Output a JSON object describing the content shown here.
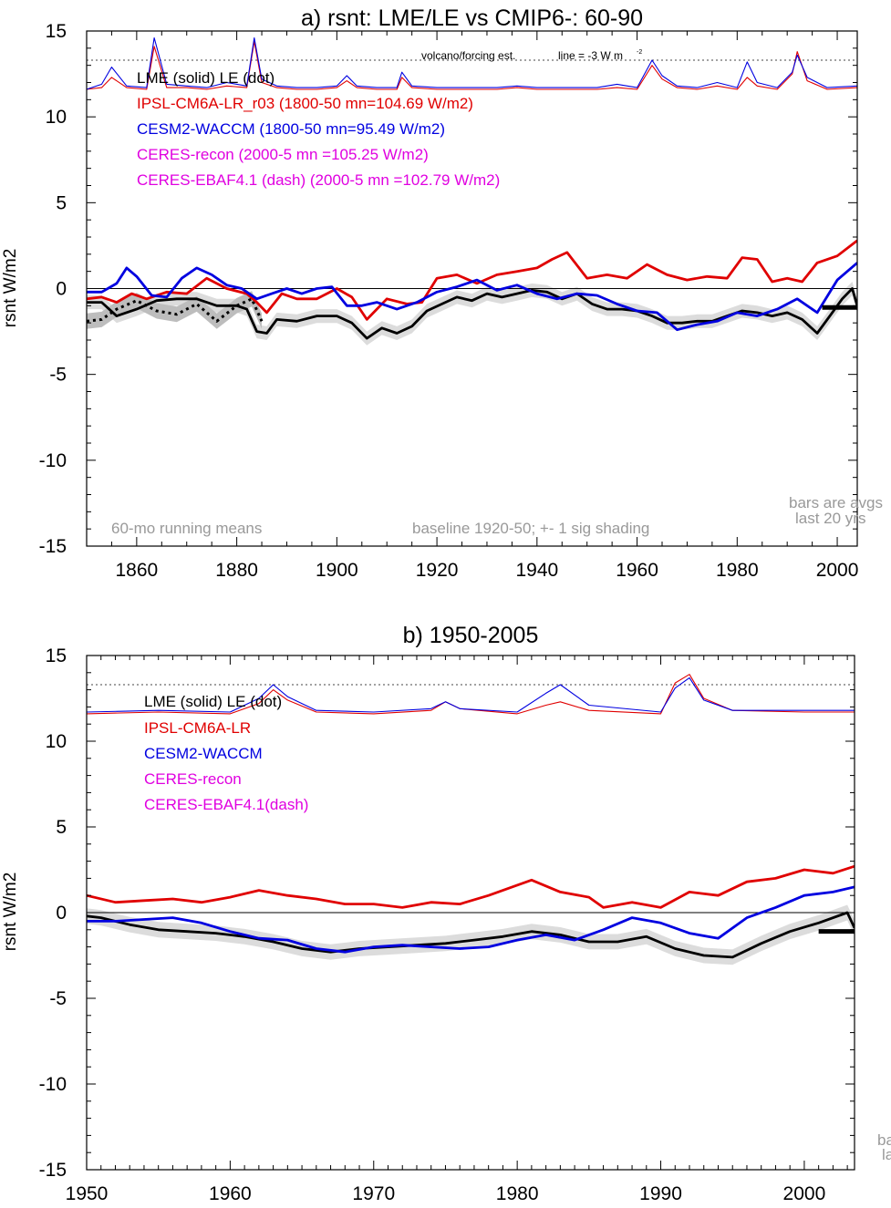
{
  "chart_data": [
    {
      "type": "line",
      "title": "a) rsnt: LME/LE vs CMIP6-: 60-90",
      "ylabel": "rsnt W/m2",
      "xlim": [
        1850,
        2004
      ],
      "ylim": [
        -15,
        15
      ],
      "xticks": [
        1860,
        1880,
        1900,
        1920,
        1940,
        1960,
        1980,
        2000
      ],
      "yticks": [
        15,
        10,
        5,
        0,
        -5,
        -10,
        -15
      ],
      "legend": [
        {
          "text": "LME (solid)    LE (dot)",
          "color": "#000000"
        },
        {
          "text": "IPSL-CM6A-LR_r03 (1800-50 mn=104.69 W/m2)",
          "color": "#e00000"
        },
        {
          "text": "CESM2-WACCM (1800-50 mn=95.49 W/m2)",
          "color": "#0000e0"
        },
        {
          "text": "CERES-recon (2000-5 mn =105.25 W/m2)",
          "color": "#e000e0"
        },
        {
          "text": "CERES-EBAF4.1 (dash) (2000-5 mn =102.79 W/m2)",
          "color": "#e000e0"
        }
      ],
      "annotations": {
        "volcano": "volcano/forcing est.",
        "line_note": "line = -3 W m",
        "line_note_sup": "-2",
        "running": "60-mo running means",
        "baseline": "baseline 1920-50; +- 1 sig shading",
        "bars1": "bars are avgs",
        "bars2": "last 20 yrs"
      },
      "ref_dotted_y": 13.3,
      "bar": {
        "x": [
          1997,
          2004
        ],
        "y": -1.1
      },
      "series": [
        {
          "name": "LME",
          "style": "solid-thick",
          "color": "#000000",
          "x": [
            1850,
            1853,
            1856,
            1860,
            1864,
            1868,
            1872,
            1876,
            1880,
            1882,
            1884,
            1886,
            1888,
            1892,
            1896,
            1900,
            1903,
            1906,
            1909,
            1912,
            1915,
            1918,
            1921,
            1924,
            1927,
            1930,
            1933,
            1936,
            1939,
            1942,
            1945,
            1948,
            1951,
            1954,
            1957,
            1960,
            1963,
            1966,
            1969,
            1972,
            1975,
            1978,
            1981,
            1984,
            1987,
            1990,
            1993,
            1996,
            1999,
            2001,
            2003,
            2004
          ],
          "y": [
            -0.8,
            -0.8,
            -1.6,
            -1.2,
            -0.7,
            -0.6,
            -0.6,
            -1.0,
            -1.0,
            -1.2,
            -2.5,
            -2.6,
            -1.8,
            -1.9,
            -1.6,
            -1.6,
            -2.0,
            -2.9,
            -2.3,
            -2.6,
            -2.2,
            -1.3,
            -0.9,
            -0.5,
            -0.7,
            -0.3,
            -0.5,
            -0.3,
            -0.1,
            -0.2,
            -0.6,
            -0.3,
            -0.9,
            -1.2,
            -1.2,
            -1.3,
            -1.6,
            -2.0,
            -2.0,
            -1.9,
            -1.9,
            -1.6,
            -1.3,
            -1.4,
            -1.6,
            -1.4,
            -1.8,
            -2.6,
            -1.4,
            -0.6,
            0.0,
            -1.0
          ],
          "band": 0.4
        },
        {
          "name": "LE",
          "style": "dotted",
          "color": "#000000",
          "x": [
            1850,
            1853,
            1856,
            1860,
            1864,
            1868,
            1872,
            1876,
            1880,
            1883,
            1885
          ],
          "y": [
            -1.9,
            -1.8,
            -1.2,
            -0.7,
            -1.3,
            -1.5,
            -0.9,
            -1.9,
            -1.0,
            -0.6,
            -1.9
          ],
          "band": 0.45
        },
        {
          "name": "IPSL-CM6A-LR_r03",
          "style": "solid-thick",
          "color": "#e00000",
          "x": [
            1850,
            1853,
            1856,
            1859,
            1862,
            1866,
            1870,
            1874,
            1878,
            1882,
            1884,
            1886,
            1889,
            1892,
            1896,
            1900,
            1903,
            1906,
            1910,
            1914,
            1917,
            1920,
            1924,
            1928,
            1932,
            1936,
            1940,
            1943,
            1946,
            1950,
            1954,
            1958,
            1962,
            1966,
            1970,
            1974,
            1978,
            1981,
            1984,
            1987,
            1990,
            1993,
            1996,
            2000,
            2004
          ],
          "y": [
            -0.6,
            -0.5,
            -0.8,
            -0.3,
            -0.6,
            -0.2,
            -0.3,
            0.6,
            0.0,
            -0.3,
            -0.8,
            -1.4,
            -0.3,
            -0.6,
            -0.6,
            0.0,
            -0.5,
            -1.8,
            -0.6,
            -0.9,
            -0.8,
            0.6,
            0.8,
            0.3,
            0.8,
            1.0,
            1.2,
            1.7,
            2.1,
            0.6,
            0.8,
            0.6,
            1.4,
            0.8,
            0.5,
            0.7,
            0.6,
            1.8,
            1.7,
            0.4,
            0.6,
            0.4,
            1.5,
            1.9,
            2.8
          ]
        },
        {
          "name": "CESM2-WACCM",
          "style": "solid-thick",
          "color": "#0000e0",
          "x": [
            1850,
            1853,
            1856,
            1858,
            1860,
            1863,
            1866,
            1869,
            1872,
            1875,
            1878,
            1881,
            1884,
            1887,
            1890,
            1893,
            1896,
            1899,
            1902,
            1905,
            1908,
            1912,
            1916,
            1920,
            1924,
            1928,
            1932,
            1936,
            1940,
            1944,
            1948,
            1952,
            1956,
            1960,
            1964,
            1968,
            1972,
            1976,
            1980,
            1984,
            1988,
            1992,
            1996,
            2000,
            2004
          ],
          "y": [
            -0.2,
            -0.2,
            0.3,
            1.2,
            0.7,
            -0.4,
            -0.5,
            0.6,
            1.2,
            0.8,
            0.2,
            0.0,
            -0.6,
            -0.3,
            0.0,
            -0.3,
            0.0,
            0.1,
            -1.0,
            -1.0,
            -0.8,
            -1.2,
            -0.8,
            -0.2,
            0.1,
            0.5,
            -0.1,
            0.2,
            -0.3,
            -0.6,
            -0.3,
            -0.4,
            -0.9,
            -1.3,
            -1.4,
            -2.4,
            -2.1,
            -1.9,
            -1.4,
            -1.6,
            -1.2,
            -0.6,
            -1.4,
            0.5,
            1.5
          ]
        },
        {
          "name": "IPSL volcano/forcing",
          "style": "thin",
          "color": "#e00000",
          "x": [
            1850,
            1853,
            1855,
            1858,
            1862,
            1863.5,
            1866,
            1870,
            1874,
            1878,
            1882,
            1883.5,
            1885,
            1888,
            1892,
            1896,
            1900,
            1902,
            1904,
            1908,
            1912,
            1913,
            1915,
            1920,
            1924,
            1928,
            1932,
            1936,
            1940,
            1944,
            1948,
            1952,
            1956,
            1960,
            1963,
            1965,
            1968,
            1972,
            1976,
            1980,
            1982,
            1984,
            1988,
            1991,
            1992,
            1994,
            1998,
            2004
          ],
          "y": [
            11.6,
            11.7,
            12.3,
            11.7,
            11.6,
            14.1,
            11.7,
            11.7,
            11.6,
            11.8,
            11.7,
            14.4,
            12.0,
            11.7,
            11.6,
            11.6,
            11.7,
            12.1,
            11.7,
            11.6,
            11.6,
            12.3,
            11.7,
            11.6,
            11.6,
            11.6,
            11.6,
            11.7,
            11.6,
            11.6,
            11.6,
            11.6,
            11.7,
            11.6,
            13.0,
            12.2,
            11.7,
            11.6,
            11.8,
            11.6,
            12.3,
            11.8,
            11.6,
            12.5,
            13.8,
            12.1,
            11.6,
            11.7
          ]
        },
        {
          "name": "CESM volcano/forcing",
          "style": "thin",
          "color": "#0000e0",
          "x": [
            1850,
            1853,
            1855,
            1858,
            1862,
            1863.5,
            1866,
            1870,
            1874,
            1878,
            1882,
            1883.5,
            1885,
            1888,
            1892,
            1896,
            1900,
            1902,
            1904,
            1908,
            1912,
            1913,
            1915,
            1920,
            1924,
            1928,
            1932,
            1936,
            1940,
            1944,
            1948,
            1952,
            1956,
            1960,
            1963,
            1965,
            1968,
            1972,
            1976,
            1980,
            1982,
            1984,
            1988,
            1991,
            1992,
            1994,
            1998,
            2004
          ],
          "y": [
            11.6,
            11.9,
            12.9,
            11.8,
            11.7,
            14.6,
            11.9,
            11.8,
            11.7,
            12.0,
            11.8,
            14.6,
            12.2,
            11.8,
            11.7,
            11.7,
            11.8,
            12.4,
            11.8,
            11.7,
            11.7,
            12.6,
            11.8,
            11.7,
            11.7,
            11.7,
            11.7,
            11.8,
            11.7,
            11.7,
            11.7,
            11.7,
            11.9,
            11.7,
            13.3,
            12.4,
            11.8,
            11.7,
            12.0,
            11.7,
            13.2,
            12.0,
            11.7,
            12.6,
            13.6,
            12.3,
            11.7,
            11.8
          ]
        }
      ]
    },
    {
      "type": "line",
      "title": "b) 1950-2005",
      "ylabel": "rsnt W/m2",
      "xlim": [
        1950,
        2003.5
      ],
      "ylim": [
        -15,
        15
      ],
      "xticks": [
        1950,
        1960,
        1970,
        1980,
        1990,
        2000
      ],
      "yticks": [
        15,
        10,
        5,
        0,
        -5,
        -10,
        -15
      ],
      "legend": [
        {
          "text": "LME (solid)      LE (dot)",
          "color": "#000000"
        },
        {
          "text": "IPSL-CM6A-LR",
          "color": "#e00000"
        },
        {
          "text": "CESM2-WACCM",
          "color": "#0000e0"
        },
        {
          "text": "CERES-recon",
          "color": "#e000e0"
        },
        {
          "text": "CERES-EBAF4.1(dash)",
          "color": "#e000e0"
        }
      ],
      "annotations": {
        "bars1": "ba",
        "bars2": "la"
      },
      "ref_dotted_y": 13.3,
      "bar": {
        "x": [
          2001,
          2003.5
        ],
        "y": -1.1
      },
      "series": [
        {
          "name": "LME",
          "style": "solid-thick",
          "color": "#000000",
          "x": [
            1950,
            1951,
            1953,
            1955,
            1957,
            1959,
            1961,
            1963,
            1965,
            1967,
            1969,
            1971,
            1973,
            1975,
            1977,
            1979,
            1981,
            1983,
            1985,
            1987,
            1989,
            1991,
            1993,
            1995,
            1997,
            1999,
            2001,
            2003,
            2003.5
          ],
          "y": [
            -0.2,
            -0.3,
            -0.7,
            -1.0,
            -1.1,
            -1.2,
            -1.4,
            -1.7,
            -2.1,
            -2.3,
            -2.1,
            -2.0,
            -1.9,
            -1.8,
            -1.6,
            -1.4,
            -1.1,
            -1.3,
            -1.7,
            -1.7,
            -1.4,
            -2.1,
            -2.5,
            -2.6,
            -1.8,
            -1.1,
            -0.6,
            0.0,
            -0.9
          ],
          "band": 0.45
        },
        {
          "name": "IPSL-CM6A-LR",
          "style": "solid-thick",
          "color": "#e00000",
          "x": [
            1950,
            1952,
            1954,
            1956,
            1958,
            1960,
            1962,
            1964,
            1966,
            1968,
            1970,
            1972,
            1974,
            1976,
            1978,
            1980,
            1981,
            1983,
            1985,
            1986,
            1988,
            1990,
            1992,
            1994,
            1996,
            1998,
            2000,
            2002,
            2003.5
          ],
          "y": [
            1.0,
            0.6,
            0.7,
            0.8,
            0.6,
            0.9,
            1.3,
            1.0,
            0.8,
            0.5,
            0.5,
            0.3,
            0.6,
            0.5,
            1.0,
            1.6,
            1.9,
            1.2,
            0.9,
            0.3,
            0.6,
            0.3,
            1.2,
            1.0,
            1.8,
            2.0,
            2.5,
            2.3,
            2.7
          ]
        },
        {
          "name": "CESM2-WACCM",
          "style": "solid-thick",
          "color": "#0000e0",
          "x": [
            1950,
            1952,
            1954,
            1956,
            1958,
            1960,
            1962,
            1964,
            1966,
            1968,
            1970,
            1972,
            1974,
            1976,
            1978,
            1980,
            1982,
            1984,
            1986,
            1988,
            1990,
            1992,
            1994,
            1996,
            1998,
            2000,
            2002,
            2003.5
          ],
          "y": [
            -0.5,
            -0.5,
            -0.4,
            -0.3,
            -0.6,
            -1.1,
            -1.5,
            -1.6,
            -2.1,
            -2.3,
            -2.0,
            -1.9,
            -2.0,
            -2.1,
            -2.0,
            -1.6,
            -1.3,
            -1.6,
            -1.0,
            -0.3,
            -0.6,
            -1.2,
            -1.5,
            -0.3,
            0.3,
            1.0,
            1.2,
            1.5
          ]
        },
        {
          "name": "IPSL volcano/forcing",
          "style": "thin",
          "color": "#e00000",
          "x": [
            1950,
            1955,
            1960,
            1962,
            1963,
            1964,
            1966,
            1970,
            1974,
            1975,
            1976,
            1980,
            1982,
            1983,
            1985,
            1990,
            1991,
            1992,
            1993,
            1995,
            2000,
            2003.5
          ],
          "y": [
            11.6,
            11.7,
            11.6,
            12.2,
            13.0,
            12.4,
            11.7,
            11.6,
            11.8,
            12.3,
            11.9,
            11.6,
            12.1,
            12.3,
            11.8,
            11.6,
            13.4,
            13.9,
            12.5,
            11.8,
            11.7,
            11.7
          ]
        },
        {
          "name": "CESM volcano/forcing",
          "style": "thin",
          "color": "#0000e0",
          "x": [
            1950,
            1955,
            1960,
            1962,
            1963,
            1964,
            1966,
            1970,
            1974,
            1975,
            1976,
            1980,
            1982,
            1983,
            1985,
            1990,
            1991,
            1992,
            1993,
            1995,
            2000,
            2003.5
          ],
          "y": [
            11.7,
            11.8,
            11.7,
            12.5,
            13.3,
            12.6,
            11.8,
            11.7,
            11.9,
            12.3,
            11.9,
            11.7,
            12.8,
            13.3,
            12.1,
            11.7,
            13.1,
            13.7,
            12.4,
            11.8,
            11.8,
            11.8
          ]
        }
      ]
    }
  ]
}
